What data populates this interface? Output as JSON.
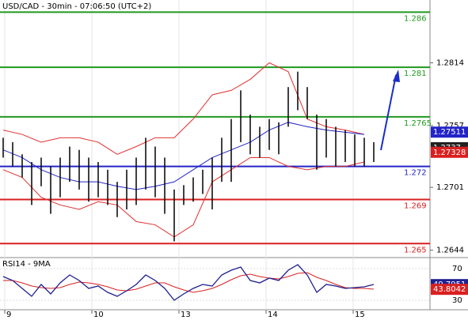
{
  "chart_data": {
    "type": "ohlc",
    "title": "USD/CAD - 30min - 07:06:50 (UTC+2)",
    "x_labels": [
      "9",
      "10",
      "13",
      "14",
      "15"
    ],
    "high": [
      1.2746,
      1.2742,
      1.2731,
      1.2724,
      1.2728,
      1.272,
      1.2728,
      1.2738,
      1.2735,
      1.2728,
      1.2724,
      1.2717,
      1.2706,
      1.2717,
      1.2728,
      1.2746,
      1.2738,
      1.2728,
      1.2699,
      1.2703,
      1.271,
      1.2717,
      1.2728,
      1.2746,
      1.2763,
      1.2789,
      1.2767,
      1.2756,
      1.2763,
      1.276,
      1.2792,
      1.2806,
      1.2792,
      1.2767,
      1.2763,
      1.2756,
      1.2753,
      1.2749,
      1.2746,
      1.2742
    ],
    "low": [
      1.2728,
      1.272,
      1.271,
      1.2685,
      1.2702,
      1.2677,
      1.2692,
      1.2706,
      1.2699,
      1.2688,
      1.2692,
      1.2685,
      1.2674,
      1.2681,
      1.2685,
      1.2699,
      1.2692,
      1.2677,
      1.2652,
      1.2685,
      1.2688,
      1.2695,
      1.2681,
      1.2706,
      1.2706,
      1.2742,
      1.2731,
      1.2728,
      1.2735,
      1.2731,
      1.2756,
      1.2771,
      1.2763,
      1.2717,
      1.2728,
      1.272,
      1.2724,
      1.272,
      1.272,
      1.2724
    ],
    "upper_band": [
      1.2753,
      1.2749,
      1.2742,
      1.2746,
      1.2746,
      1.2742,
      1.2731,
      1.2738,
      1.2746,
      1.2746,
      1.2763,
      1.2785,
      1.2789,
      1.2799,
      1.2814,
      1.2806,
      1.2763,
      1.2756,
      1.2753,
      1.2749
    ],
    "lower_band": [
      1.2717,
      1.271,
      1.2692,
      1.2685,
      1.2681,
      1.2688,
      1.2685,
      1.267,
      1.2667,
      1.2656,
      1.2667,
      1.2706,
      1.2717,
      1.2728,
      1.2728,
      1.272,
      1.2717,
      1.272,
      1.272,
      1.2724
    ],
    "moving_average": [
      1.2735,
      1.2728,
      1.2717,
      1.271,
      1.2706,
      1.2706,
      1.2702,
      1.2699,
      1.2702,
      1.2706,
      1.2717,
      1.2728,
      1.2735,
      1.2742,
      1.2753,
      1.276,
      1.2756,
      1.2753,
      1.2751,
      1.2749
    ],
    "levels": [
      {
        "value": 1.286,
        "color": "#1f9a1f"
      },
      {
        "value": 1.281,
        "color": "#1f9a1f"
      },
      {
        "value": 1.2765,
        "color": "#1f9a1f"
      },
      {
        "value": 1.272,
        "color": "#2323c8"
      },
      {
        "value": 1.269,
        "color": "#d92020"
      },
      {
        "value": 1.265,
        "color": "#d92020"
      }
    ],
    "ylim": [
      1.2638,
      1.2871
    ],
    "yticks": [
      1.2814,
      1.2757,
      1.2701,
      1.2644
    ],
    "price_tags": [
      {
        "value": 1.27511,
        "color": "#2323c8"
      },
      {
        "value": 1.2737,
        "color": "#222222"
      },
      {
        "value": 1.27328,
        "color": "#d92020"
      }
    ],
    "rsi": {
      "title": "RSI14 - 9MA",
      "values": [
        60,
        55,
        45,
        35,
        50,
        38,
        52,
        62,
        55,
        45,
        48,
        40,
        35,
        42,
        50,
        62,
        55,
        45,
        30,
        38,
        45,
        50,
        48,
        62,
        68,
        72,
        55,
        52,
        58,
        55,
        68,
        75,
        62,
        40,
        50,
        48,
        45,
        46,
        47,
        50
      ],
      "ma": [
        55,
        55,
        52,
        48,
        46,
        45,
        46,
        50,
        53,
        52,
        50,
        47,
        43,
        42,
        44,
        48,
        52,
        52,
        47,
        43,
        40,
        42,
        45,
        50,
        56,
        61,
        63,
        60,
        58,
        57,
        60,
        64,
        65,
        59,
        55,
        50,
        46,
        45,
        45,
        44
      ],
      "ylim": [
        18,
        83
      ],
      "yticks": [
        70,
        30
      ],
      "tags": [
        {
          "value": 49.7951,
          "color": "#1f1f8f"
        },
        {
          "value": 43.8042,
          "color": "#d92020"
        }
      ]
    }
  }
}
